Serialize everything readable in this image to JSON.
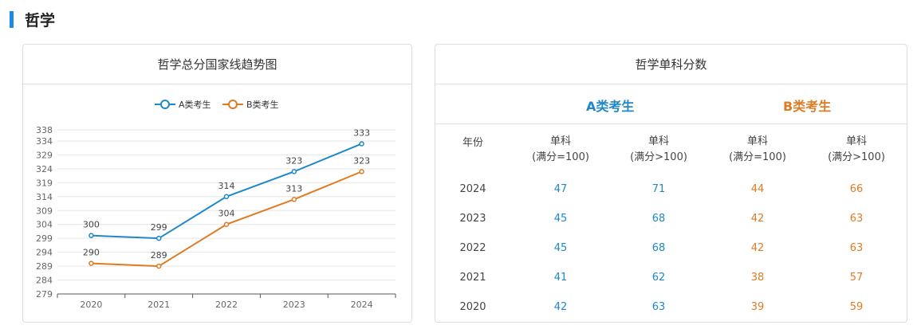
{
  "section": {
    "title": "哲学"
  },
  "chart_panel": {
    "title": "哲学总分国家线趋势图"
  },
  "chart_data": {
    "type": "line",
    "title": "哲学总分国家线趋势图",
    "x": [
      "2020",
      "2021",
      "2022",
      "2023",
      "2024"
    ],
    "series": [
      {
        "name": "A类考生",
        "color": "#1e88c8",
        "values": [
          300,
          299,
          314,
          323,
          333
        ]
      },
      {
        "name": "B类考生",
        "color": "#e07b22",
        "values": [
          290,
          289,
          304,
          313,
          323
        ]
      }
    ],
    "yticks": [
      279,
      284,
      289,
      294,
      299,
      304,
      309,
      314,
      319,
      324,
      329,
      334,
      338
    ],
    "ylim": [
      279,
      338
    ],
    "grid": true,
    "legend_position": "top-center",
    "xlabel": "",
    "ylabel": ""
  },
  "table_panel": {
    "title": "哲学单科分数",
    "group_a": "A类考生",
    "group_b": "B类考生",
    "year_header": "年份",
    "col1_line1": "单科",
    "col1_line2": "(满分=100)",
    "col2_line1": "单科",
    "col2_line2": "(满分>100)",
    "col3_line1": "单科",
    "col3_line2": "(满分=100)",
    "col4_line1": "单科",
    "col4_line2": "(满分>100)",
    "rows": [
      {
        "year": "2024",
        "a1": "47",
        "a2": "71",
        "b1": "44",
        "b2": "66"
      },
      {
        "year": "2023",
        "a1": "45",
        "a2": "68",
        "b1": "42",
        "b2": "63"
      },
      {
        "year": "2022",
        "a1": "45",
        "a2": "68",
        "b1": "42",
        "b2": "63"
      },
      {
        "year": "2021",
        "a1": "41",
        "a2": "62",
        "b1": "38",
        "b2": "57"
      },
      {
        "year": "2020",
        "a1": "42",
        "a2": "63",
        "b1": "39",
        "b2": "59"
      }
    ]
  }
}
